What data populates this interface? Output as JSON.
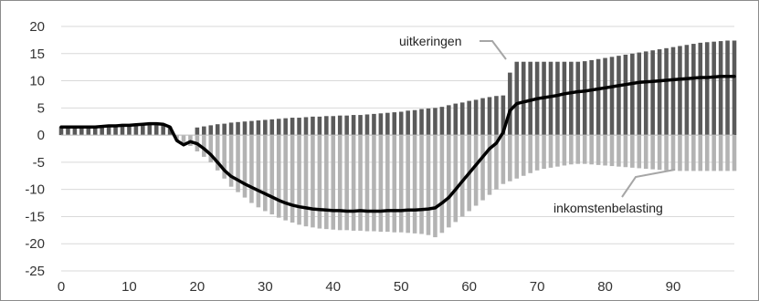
{
  "chart_data": {
    "type": "bar",
    "title": "",
    "xlabel": "",
    "ylabel": "",
    "xlim": [
      0,
      99
    ],
    "ylim": [
      -25,
      20
    ],
    "x_ticks": [
      0,
      10,
      20,
      30,
      40,
      50,
      60,
      70,
      80,
      90
    ],
    "y_ticks": [
      20,
      15,
      10,
      5,
      0,
      -5,
      -10,
      -15,
      -20,
      -25
    ],
    "grid": "horizontal",
    "legend": "none",
    "series": [
      {
        "name": "uitkeringen",
        "kind": "bar",
        "color": "#5a5a5a",
        "x": [
          0,
          1,
          2,
          3,
          4,
          5,
          6,
          7,
          8,
          9,
          10,
          11,
          12,
          13,
          14,
          15,
          16,
          17,
          18,
          19,
          20,
          21,
          22,
          23,
          24,
          25,
          26,
          27,
          28,
          29,
          30,
          31,
          32,
          33,
          34,
          35,
          36,
          37,
          38,
          39,
          40,
          41,
          42,
          43,
          44,
          45,
          46,
          47,
          48,
          49,
          50,
          51,
          52,
          53,
          54,
          55,
          56,
          57,
          58,
          59,
          60,
          61,
          62,
          63,
          64,
          65,
          66,
          67,
          68,
          69,
          70,
          71,
          72,
          73,
          74,
          75,
          76,
          77,
          78,
          79,
          80,
          81,
          82,
          83,
          84,
          85,
          86,
          87,
          88,
          89,
          90,
          91,
          92,
          93,
          94,
          95,
          96,
          97,
          98,
          99
        ],
        "values": [
          1.5,
          1.5,
          1.5,
          1.5,
          1.5,
          1.5,
          1.6,
          1.6,
          1.6,
          1.7,
          1.7,
          1.8,
          1.9,
          2.0,
          2.0,
          1.9,
          1.5,
          0,
          0,
          0,
          1.4,
          1.6,
          1.8,
          2.0,
          2.1,
          2.3,
          2.4,
          2.5,
          2.6,
          2.7,
          2.8,
          2.9,
          3.0,
          3.1,
          3.2,
          3.2,
          3.3,
          3.4,
          3.4,
          3.5,
          3.5,
          3.6,
          3.6,
          3.7,
          3.7,
          3.8,
          3.9,
          4.0,
          4.1,
          4.2,
          4.3,
          4.5,
          4.6,
          4.8,
          4.9,
          5.0,
          5.2,
          5.5,
          5.8,
          6.0,
          6.3,
          6.5,
          6.8,
          7.0,
          7.2,
          7.3,
          11.5,
          13.5,
          13.5,
          13.5,
          13.5,
          13.5,
          13.5,
          13.5,
          13.5,
          13.5,
          13.5,
          13.6,
          13.8,
          14.0,
          14.2,
          14.4,
          14.6,
          14.8,
          15.0,
          15.2,
          15.4,
          15.6,
          15.8,
          16.0,
          16.2,
          16.4,
          16.6,
          16.8,
          17.0,
          17.1,
          17.2,
          17.3,
          17.4,
          17.4
        ]
      },
      {
        "name": "inkomstenbelasting",
        "kind": "bar",
        "color": "#b3b3b3",
        "x": [
          0,
          1,
          2,
          3,
          4,
          5,
          6,
          7,
          8,
          9,
          10,
          11,
          12,
          13,
          14,
          15,
          16,
          17,
          18,
          19,
          20,
          21,
          22,
          23,
          24,
          25,
          26,
          27,
          28,
          29,
          30,
          31,
          32,
          33,
          34,
          35,
          36,
          37,
          38,
          39,
          40,
          41,
          42,
          43,
          44,
          45,
          46,
          47,
          48,
          49,
          50,
          51,
          52,
          53,
          54,
          55,
          56,
          57,
          58,
          59,
          60,
          61,
          62,
          63,
          64,
          65,
          66,
          67,
          68,
          69,
          70,
          71,
          72,
          73,
          74,
          75,
          76,
          77,
          78,
          79,
          80,
          81,
          82,
          83,
          84,
          85,
          86,
          87,
          88,
          89,
          90,
          91,
          92,
          93,
          94,
          95,
          96,
          97,
          98,
          99
        ],
        "values": [
          0,
          0,
          0,
          0,
          0,
          0,
          0,
          0,
          0,
          0,
          0,
          0,
          0,
          0,
          0,
          0,
          0,
          -1.0,
          -1.5,
          -2.0,
          -3.0,
          -4.0,
          -5.0,
          -6.5,
          -8.0,
          -9.5,
          -10.5,
          -11.5,
          -12.5,
          -13.3,
          -14.0,
          -14.6,
          -15.2,
          -15.7,
          -16.1,
          -16.5,
          -16.8,
          -17.0,
          -17.2,
          -17.3,
          -17.4,
          -17.5,
          -17.5,
          -17.6,
          -17.6,
          -17.7,
          -17.7,
          -17.8,
          -17.8,
          -17.9,
          -17.9,
          -18.0,
          -18.1,
          -18.2,
          -18.4,
          -18.8,
          -18.0,
          -17.0,
          -16.0,
          -15.0,
          -14.0,
          -13.0,
          -12.0,
          -11.0,
          -10.0,
          -9.0,
          -8.5,
          -8.0,
          -7.5,
          -7.0,
          -6.5,
          -6.2,
          -6.0,
          -5.8,
          -5.6,
          -5.4,
          -5.3,
          -5.3,
          -5.4,
          -5.5,
          -5.6,
          -5.7,
          -5.8,
          -5.9,
          -6.0,
          -6.1,
          -6.2,
          -6.3,
          -6.4,
          -6.5,
          -6.5,
          -6.6,
          -6.6,
          -6.6,
          -6.6,
          -6.6,
          -6.6,
          -6.6,
          -6.6,
          -6.6
        ]
      },
      {
        "name": "",
        "kind": "line",
        "color": "#000000",
        "x": [
          0,
          1,
          2,
          3,
          4,
          5,
          6,
          7,
          8,
          9,
          10,
          11,
          12,
          13,
          14,
          15,
          16,
          17,
          18,
          19,
          20,
          21,
          22,
          23,
          24,
          25,
          26,
          27,
          28,
          29,
          30,
          31,
          32,
          33,
          34,
          35,
          36,
          37,
          38,
          39,
          40,
          41,
          42,
          43,
          44,
          45,
          46,
          47,
          48,
          49,
          50,
          51,
          52,
          53,
          54,
          55,
          56,
          57,
          58,
          59,
          60,
          61,
          62,
          63,
          64,
          65,
          66,
          67,
          68,
          69,
          70,
          71,
          72,
          73,
          74,
          75,
          76,
          77,
          78,
          79,
          80,
          81,
          82,
          83,
          84,
          85,
          86,
          87,
          88,
          89,
          90,
          91,
          92,
          93,
          94,
          95,
          96,
          97,
          98,
          99
        ],
        "values": [
          1.5,
          1.5,
          1.5,
          1.5,
          1.5,
          1.5,
          1.6,
          1.7,
          1.7,
          1.8,
          1.8,
          1.9,
          2.0,
          2.1,
          2.1,
          2.0,
          1.5,
          -1.0,
          -1.8,
          -1.2,
          -1.6,
          -2.5,
          -3.6,
          -5.0,
          -6.5,
          -7.6,
          -8.3,
          -9.0,
          -9.6,
          -10.2,
          -10.8,
          -11.4,
          -12.0,
          -12.5,
          -12.9,
          -13.2,
          -13.4,
          -13.6,
          -13.7,
          -13.8,
          -13.9,
          -13.9,
          -14.0,
          -14.0,
          -13.9,
          -14.0,
          -14.0,
          -14.0,
          -13.9,
          -13.9,
          -13.9,
          -13.8,
          -13.8,
          -13.7,
          -13.6,
          -13.4,
          -12.5,
          -11.5,
          -10.0,
          -8.5,
          -7.0,
          -5.5,
          -4.0,
          -2.5,
          -1.5,
          0.5,
          4.5,
          5.8,
          6.1,
          6.4,
          6.7,
          6.9,
          7.1,
          7.3,
          7.6,
          7.8,
          8.0,
          8.1,
          8.3,
          8.5,
          8.7,
          8.9,
          9.1,
          9.3,
          9.5,
          9.7,
          9.8,
          9.9,
          10.0,
          10.1,
          10.2,
          10.3,
          10.4,
          10.5,
          10.6,
          10.6,
          10.7,
          10.8,
          10.8,
          10.8
        ]
      }
    ],
    "annotations": [
      {
        "text": "uitkeringen",
        "target_series": 0
      },
      {
        "text": "inkomstenbelasting",
        "target_series": 1
      }
    ]
  }
}
